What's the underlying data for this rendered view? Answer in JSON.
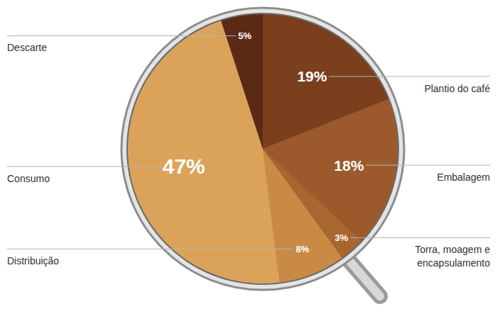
{
  "chart_data": {
    "type": "pie",
    "categories": [
      "Plantio do café",
      "Embalagem",
      "Torra, moagem e encapsulamento",
      "Distribuição",
      "Consumo",
      "Descarte"
    ],
    "values": [
      19,
      18,
      3,
      8,
      47,
      5
    ],
    "value_labels": [
      "19%",
      "18%",
      "3%",
      "8%",
      "47%",
      "5%"
    ],
    "colors": [
      "#7b3f1e",
      "#9c5a2c",
      "#a8672f",
      "#c98a45",
      "#dba35a",
      "#5b2a15"
    ],
    "data_labels": true
  }
}
